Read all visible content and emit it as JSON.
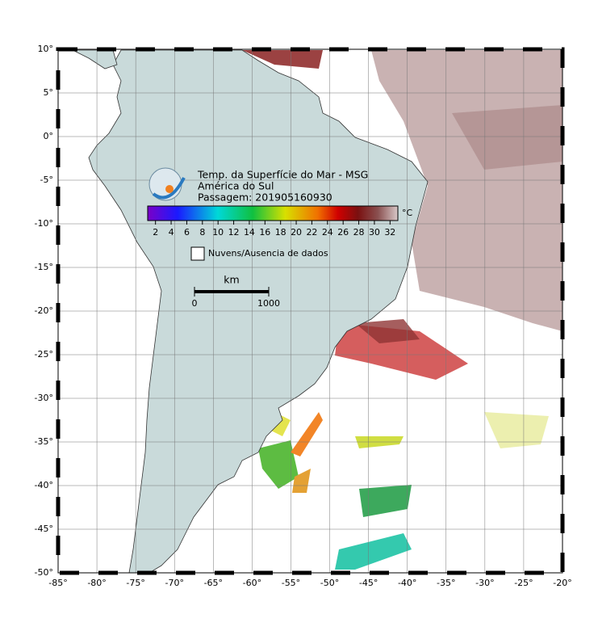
{
  "map": {
    "title": "Temp. da Superfície do Mar - MSG",
    "subtitle": "América do Sul",
    "pass": "Passagem: 201905160930",
    "colorbar": {
      "unit": "°C",
      "lim": [
        1,
        33
      ],
      "ticks": [
        2,
        4,
        6,
        8,
        10,
        12,
        14,
        16,
        18,
        20,
        22,
        24,
        26,
        28,
        30,
        32
      ]
    },
    "legend": "Nuvens/Ausencia de dados",
    "scale": {
      "unit": "km",
      "ticks": [
        0,
        1000
      ]
    },
    "xlim": [
      -85,
      -20
    ],
    "ylim": [
      -50,
      10
    ],
    "xticks": [
      {
        "value": -85,
        "label": "-85°"
      },
      {
        "value": -80,
        "label": "-80°"
      },
      {
        "value": -75,
        "label": "-75°"
      },
      {
        "value": -70,
        "label": "-70°"
      },
      {
        "value": -65,
        "label": "-65°"
      },
      {
        "value": -60,
        "label": "-60°"
      },
      {
        "value": -55,
        "label": "-55°"
      },
      {
        "value": -50,
        "label": "-50°"
      },
      {
        "value": -45,
        "label": "-45°"
      },
      {
        "value": -40,
        "label": "-40°"
      },
      {
        "value": -35,
        "label": "-35°"
      },
      {
        "value": -30,
        "label": "-30°"
      },
      {
        "value": -25,
        "label": "-25°"
      },
      {
        "value": -20,
        "label": "-20°"
      }
    ],
    "yticks": [
      {
        "value": 10,
        "label": "10°"
      },
      {
        "value": 5,
        "label": "5°"
      },
      {
        "value": 0,
        "label": "0°"
      },
      {
        "value": -5,
        "label": "-5°"
      },
      {
        "value": -10,
        "label": "-10°"
      },
      {
        "value": -15,
        "label": "-15°"
      },
      {
        "value": -20,
        "label": "-20°"
      },
      {
        "value": -25,
        "label": "-25°"
      },
      {
        "value": -30,
        "label": "-30°"
      },
      {
        "value": -35,
        "label": "-35°"
      },
      {
        "value": -40,
        "label": "-40°"
      },
      {
        "value": -45,
        "label": "-45°"
      },
      {
        "value": -50,
        "label": "-50°"
      }
    ]
  }
}
